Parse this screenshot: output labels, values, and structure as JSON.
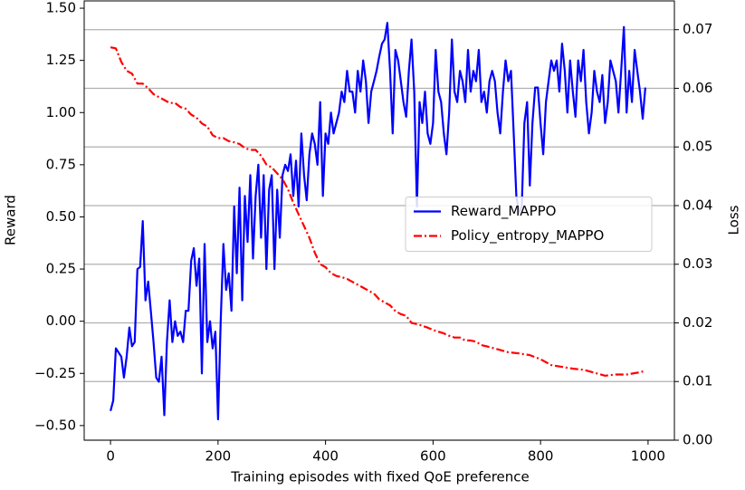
{
  "chart_data": {
    "type": "line",
    "xlabel": "Training episodes with fixed QoE preference",
    "ylabel": "Reward",
    "y2label": "Loss",
    "xlim": [
      -49,
      1049
    ],
    "ylim": [
      -0.57,
      1.535
    ],
    "y2lim": [
      0,
      0.0749
    ],
    "xticks": [
      0,
      200,
      400,
      600,
      800,
      1000
    ],
    "yticks": [
      {
        "value": -0.5,
        "label": "−0.50"
      },
      {
        "value": -0.25,
        "label": "−0.25"
      },
      {
        "value": 0,
        "label": "0.00"
      },
      {
        "value": 0.25,
        "label": "0.25"
      },
      {
        "value": 0.5,
        "label": "0.50"
      },
      {
        "value": 0.75,
        "label": "0.75"
      },
      {
        "value": 1,
        "label": "1.00"
      },
      {
        "value": 1.25,
        "label": "1.25"
      },
      {
        "value": 1.5,
        "label": "1.50"
      }
    ],
    "y2ticks": [
      {
        "value": 0,
        "label": "0.00"
      },
      {
        "value": 0.01,
        "label": "0.01"
      },
      {
        "value": 0.02,
        "label": "0.02"
      },
      {
        "value": 0.03,
        "label": "0.03"
      },
      {
        "value": 0.04,
        "label": "0.04"
      },
      {
        "value": 0.05,
        "label": "0.05"
      },
      {
        "value": 0.06,
        "label": "0.06"
      },
      {
        "value": 0.07,
        "label": "0.07"
      }
    ],
    "grid": "y2",
    "legend": "center right",
    "series": [
      {
        "name": "Reward_MAPPO",
        "color": "#0000ff",
        "dash": "solid",
        "x": [
          0,
          5,
          10,
          15,
          20,
          25,
          30,
          35,
          40,
          45,
          50,
          55,
          60,
          65,
          70,
          75,
          80,
          85,
          90,
          95,
          100,
          105,
          110,
          115,
          120,
          125,
          130,
          135,
          140,
          145,
          150,
          155,
          160,
          165,
          170,
          175,
          180,
          185,
          190,
          195,
          200,
          205,
          210,
          215,
          220,
          225,
          230,
          235,
          240,
          245,
          250,
          255,
          260,
          265,
          270,
          275,
          280,
          285,
          290,
          295,
          300,
          305,
          310,
          315,
          320,
          325,
          330,
          335,
          340,
          345,
          350,
          355,
          360,
          365,
          370,
          375,
          380,
          385,
          390,
          395,
          400,
          405,
          410,
          415,
          420,
          425,
          430,
          435,
          440,
          445,
          450,
          455,
          460,
          465,
          470,
          475,
          480,
          485,
          490,
          495,
          500,
          505,
          510,
          515,
          520,
          525,
          530,
          535,
          540,
          545,
          550,
          555,
          560,
          565,
          570,
          575,
          580,
          585,
          590,
          595,
          600,
          605,
          610,
          615,
          620,
          625,
          630,
          635,
          640,
          645,
          650,
          655,
          660,
          665,
          670,
          675,
          680,
          685,
          690,
          695,
          700,
          705,
          710,
          715,
          720,
          725,
          730,
          735,
          740,
          745,
          750,
          755,
          760,
          765,
          770,
          775,
          780,
          785,
          790,
          795,
          800,
          805,
          810,
          815,
          820,
          825,
          830,
          835,
          840,
          845,
          850,
          855,
          860,
          865,
          870,
          875,
          880,
          885,
          890,
          895,
          900,
          905,
          910,
          915,
          920,
          925,
          930,
          935,
          940,
          945,
          950,
          955,
          960,
          965,
          970,
          975,
          980,
          985,
          990,
          995
        ],
        "values": [
          -0.43,
          -0.38,
          -0.13,
          -0.15,
          -0.17,
          -0.27,
          -0.17,
          -0.03,
          -0.12,
          -0.1,
          0.25,
          0.26,
          0.48,
          0.1,
          0.19,
          0.05,
          -0.1,
          -0.27,
          -0.29,
          -0.17,
          -0.45,
          -0.1,
          0.1,
          -0.1,
          0.0,
          -0.07,
          -0.05,
          -0.1,
          0.05,
          0.05,
          0.29,
          0.35,
          0.17,
          0.3,
          -0.25,
          0.37,
          -0.1,
          0.0,
          -0.13,
          -0.05,
          -0.47,
          0.0,
          0.37,
          0.15,
          0.23,
          0.05,
          0.55,
          0.23,
          0.64,
          0.1,
          0.6,
          0.38,
          0.7,
          0.3,
          0.6,
          0.75,
          0.4,
          0.7,
          0.25,
          0.63,
          0.7,
          0.25,
          0.63,
          0.4,
          0.7,
          0.75,
          0.72,
          0.8,
          0.6,
          0.77,
          0.55,
          0.9,
          0.7,
          0.58,
          0.8,
          0.9,
          0.85,
          0.75,
          1.05,
          0.6,
          0.9,
          0.85,
          1.0,
          0.9,
          0.95,
          1.0,
          1.1,
          1.05,
          1.2,
          1.1,
          1.1,
          1.0,
          1.2,
          1.1,
          1.25,
          1.15,
          0.95,
          1.1,
          1.15,
          1.2,
          1.27,
          1.33,
          1.35,
          1.43,
          1.2,
          0.9,
          1.3,
          1.25,
          1.15,
          1.05,
          0.98,
          1.2,
          1.35,
          1.1,
          0.55,
          1.05,
          0.95,
          1.1,
          0.9,
          0.85,
          0.95,
          1.3,
          1.1,
          1.05,
          0.9,
          0.8,
          1.0,
          1.35,
          1.1,
          1.05,
          1.2,
          1.15,
          1.05,
          1.3,
          1.1,
          1.2,
          1.15,
          1.3,
          1.05,
          1.1,
          1.0,
          1.15,
          1.2,
          1.15,
          1.0,
          0.9,
          1.1,
          1.25,
          1.15,
          1.2,
          0.9,
          0.6,
          0.52,
          0.55,
          0.95,
          1.05,
          0.65,
          0.95,
          1.12,
          1.12,
          0.95,
          0.8,
          1.05,
          1.15,
          1.25,
          1.2,
          1.25,
          1.1,
          1.33,
          1.2,
          1.0,
          1.25,
          1.1,
          0.98,
          1.25,
          1.15,
          1.3,
          1.05,
          0.9,
          1.0,
          1.2,
          1.1,
          1.05,
          1.18,
          0.95,
          1.05,
          1.25,
          1.2,
          1.15,
          1.0,
          1.2,
          1.41,
          1.0,
          1.2,
          1.05,
          1.3,
          1.2,
          1.1,
          0.97,
          1.12
        ]
      },
      {
        "name": "Policy_entropy_MAPPO",
        "color": "#ff0000",
        "dash": "dashdot",
        "axis": "y2",
        "x": [
          0,
          10,
          20,
          30,
          40,
          50,
          60,
          70,
          80,
          90,
          100,
          110,
          120,
          130,
          140,
          150,
          160,
          170,
          180,
          190,
          200,
          210,
          220,
          230,
          240,
          250,
          260,
          270,
          280,
          290,
          300,
          310,
          320,
          330,
          340,
          350,
          360,
          370,
          380,
          390,
          400,
          410,
          420,
          430,
          440,
          450,
          460,
          470,
          480,
          490,
          500,
          510,
          520,
          530,
          540,
          550,
          560,
          570,
          580,
          590,
          600,
          610,
          620,
          630,
          640,
          650,
          660,
          670,
          680,
          690,
          700,
          720,
          740,
          760,
          780,
          800,
          820,
          840,
          860,
          880,
          900,
          920,
          940,
          960,
          980,
          995
        ],
        "values": [
          0.067,
          0.0668,
          0.0645,
          0.063,
          0.0625,
          0.0608,
          0.0608,
          0.06,
          0.059,
          0.0585,
          0.058,
          0.0575,
          0.0575,
          0.0568,
          0.0565,
          0.0555,
          0.055,
          0.054,
          0.0535,
          0.052,
          0.0515,
          0.0515,
          0.051,
          0.0508,
          0.0505,
          0.0498,
          0.0495,
          0.0495,
          0.0485,
          0.047,
          0.0465,
          0.0455,
          0.0445,
          0.0428,
          0.0405,
          0.0385,
          0.0365,
          0.0345,
          0.032,
          0.03,
          0.0295,
          0.0285,
          0.028,
          0.0278,
          0.0275,
          0.027,
          0.0265,
          0.026,
          0.0255,
          0.025,
          0.024,
          0.0235,
          0.023,
          0.022,
          0.0215,
          0.0212,
          0.02,
          0.0198,
          0.0195,
          0.0192,
          0.0188,
          0.0185,
          0.0182,
          0.0178,
          0.0175,
          0.0175,
          0.017,
          0.017,
          0.0168,
          0.0162,
          0.016,
          0.0155,
          0.015,
          0.0148,
          0.0145,
          0.0138,
          0.0128,
          0.0125,
          0.0122,
          0.012,
          0.0115,
          0.011,
          0.0112,
          0.0112,
          0.0115,
          0.0118
        ]
      }
    ]
  }
}
